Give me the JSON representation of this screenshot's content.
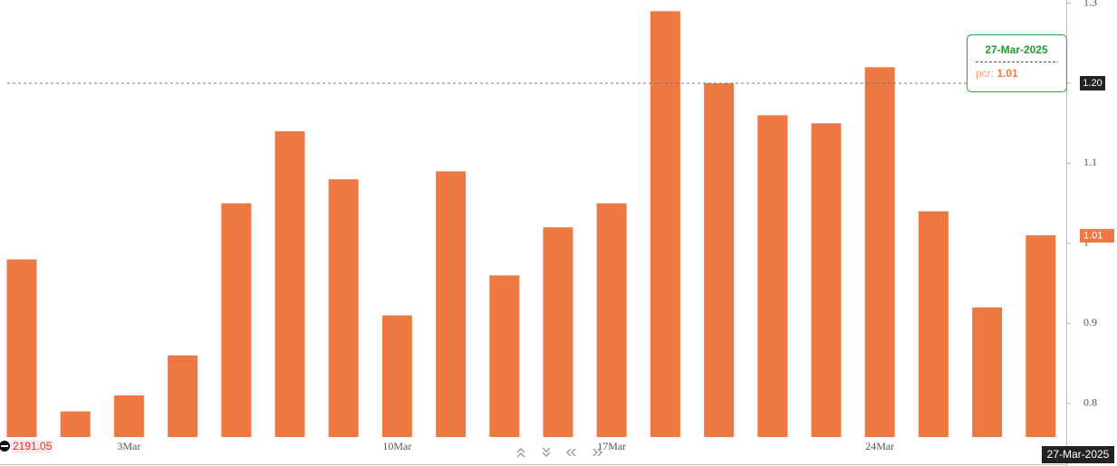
{
  "chart_data": {
    "type": "bar",
    "categories": [
      null,
      null,
      "3Mar",
      null,
      null,
      null,
      null,
      "10Mar",
      null,
      null,
      null,
      "17Mar",
      null,
      null,
      null,
      null,
      "24Mar",
      null,
      null,
      null
    ],
    "series": [
      {
        "name": "pcr",
        "color": "#ee7842",
        "values": [
          0.98,
          0.79,
          0.81,
          0.86,
          1.05,
          1.14,
          1.08,
          0.91,
          1.09,
          0.96,
          1.02,
          1.05,
          1.29,
          1.2,
          1.16,
          1.15,
          1.22,
          1.04,
          0.92,
          1.01
        ]
      }
    ],
    "ylim": [
      0.758,
      1.304
    ],
    "yticks": [
      0.8,
      0.9,
      1,
      1.1,
      1.2,
      1.3
    ],
    "crosshair": {
      "value": 1.2,
      "label": "1.20"
    },
    "crosshair_date": "27-Mar-2025",
    "price_label": 2191.05
  }
}
